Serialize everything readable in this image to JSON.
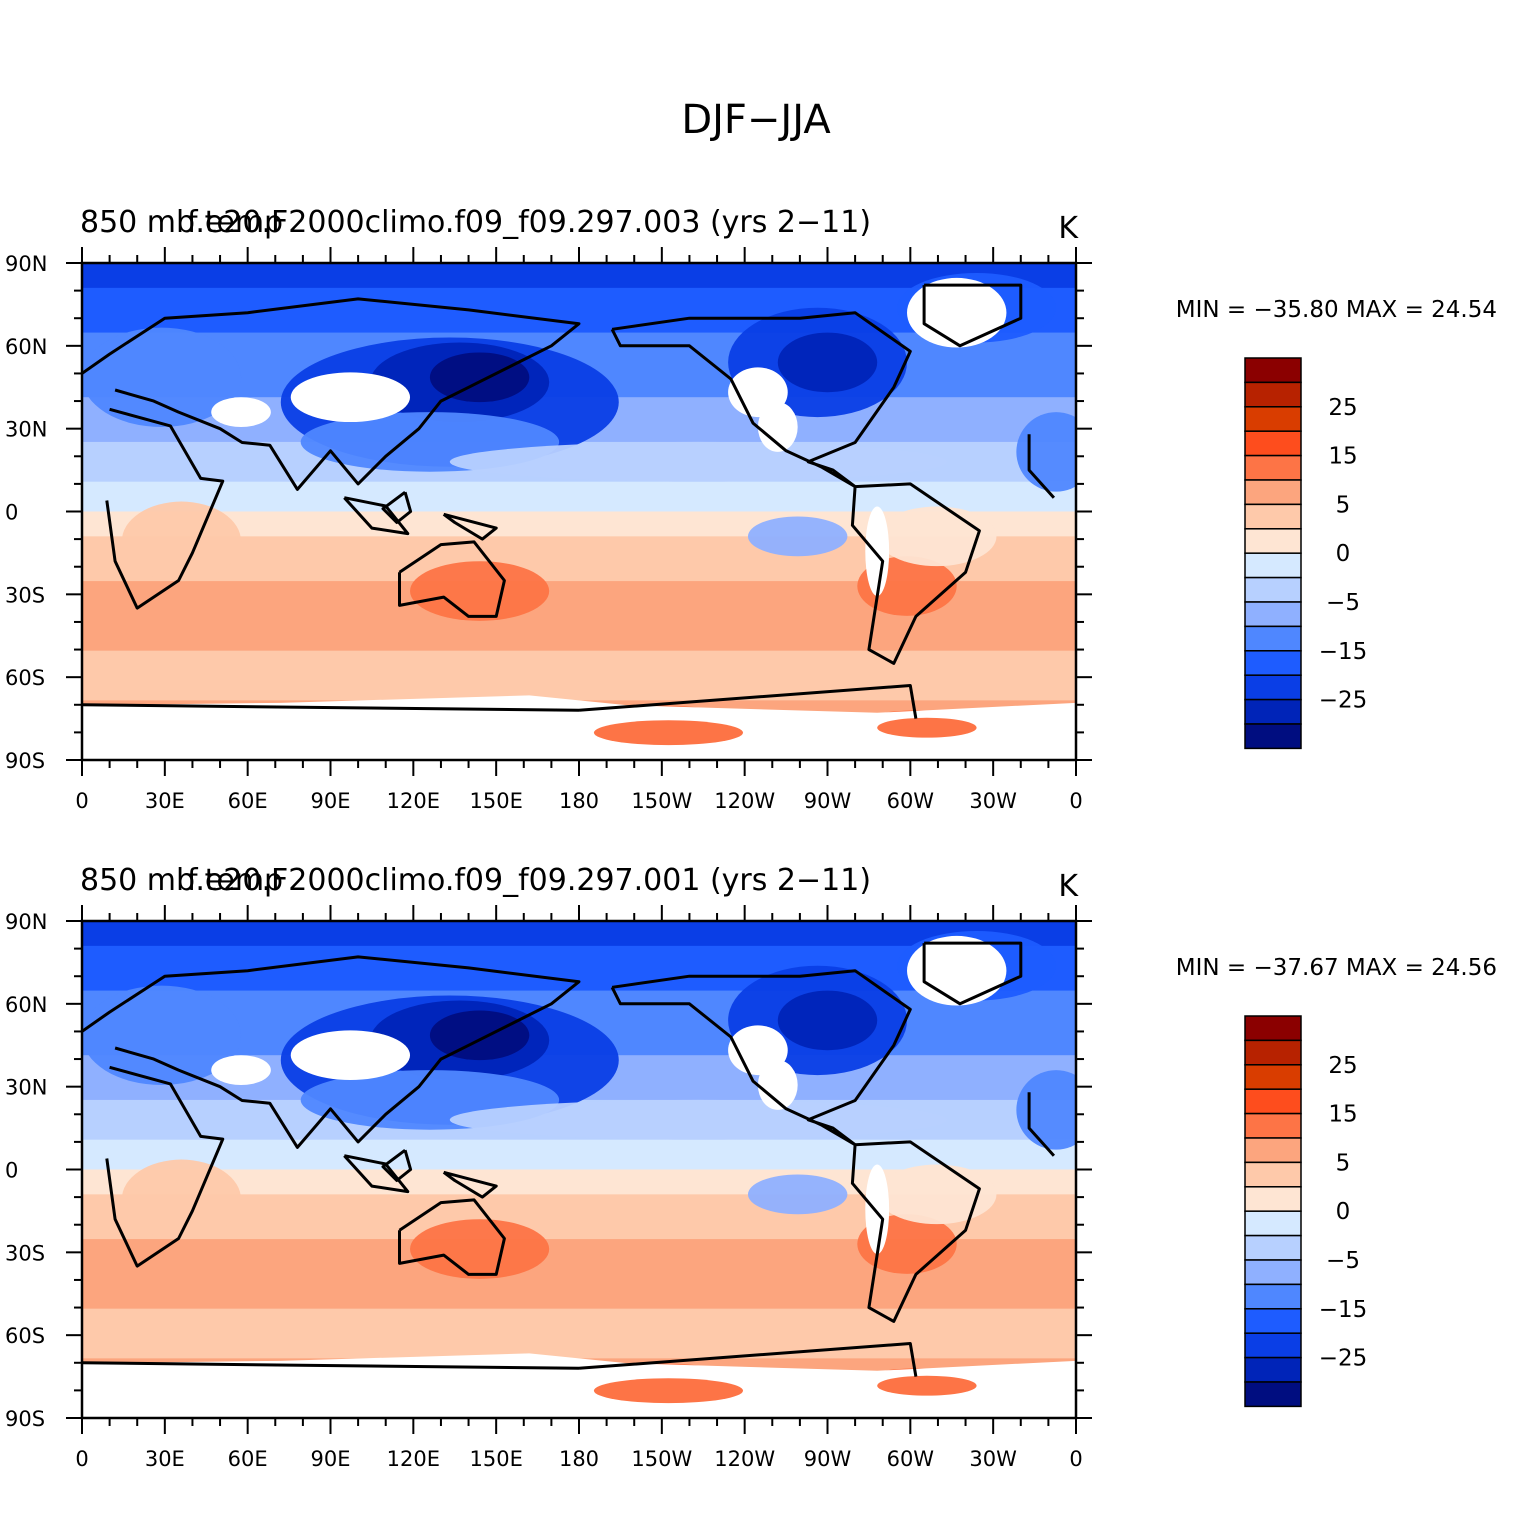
{
  "figure": {
    "title": "DJF−JJA"
  },
  "colorbar": {
    "colors": [
      "#8b0000",
      "#b72200",
      "#d93d00",
      "#fe4d1d",
      "#fd7446",
      "#fca57e",
      "#fec9aa",
      "#fee5d3",
      "#d5e9ff",
      "#b7d0ff",
      "#8fb0ff",
      "#4f87ff",
      "#1e5cff",
      "#0a3ee6",
      "#0024b8",
      "#000d80"
    ],
    "labels": [
      "25",
      "15",
      "5",
      "0",
      "−5",
      "−15",
      "−25"
    ],
    "label_after_bin": [
      1,
      3,
      5,
      7,
      9,
      11,
      13
    ]
  },
  "chart_data": [
    {
      "type": "map",
      "left_title": "850  mb temp",
      "center_title": "f.e20.F2000climo.f09_f09.297.003 (yrs 2−11)",
      "units": "K",
      "stats": "MIN = −35.80 MAX =   24.54",
      "min": -35.8,
      "max": 24.54,
      "contour_levels": [
        -35,
        -30,
        -25,
        -20,
        -15,
        -10,
        -5,
        -2,
        0,
        2,
        5,
        10,
        15,
        20,
        25,
        30
      ],
      "lat_range": [
        -90,
        90
      ],
      "lon_range": [
        0,
        360
      ],
      "y_tick_labels": [
        "90N",
        "60N",
        "30N",
        "0",
        "30S",
        "60S",
        "90S"
      ],
      "x_tick_labels": [
        "0",
        "30E",
        "60E",
        "90E",
        "120E",
        "150E",
        "180",
        "150W",
        "120W",
        "90W",
        "60W",
        "30W",
        "0"
      ]
    },
    {
      "type": "map",
      "left_title": "850  mb temp",
      "center_title": "f.e20.F2000climo.f09_f09.297.001 (yrs 2−11)",
      "units": "K",
      "stats": "MIN = −37.67 MAX =   24.56",
      "min": -37.67,
      "max": 24.56,
      "contour_levels": [
        -35,
        -30,
        -25,
        -20,
        -15,
        -10,
        -5,
        -2,
        0,
        2,
        5,
        10,
        15,
        20,
        25,
        30
      ],
      "lat_range": [
        -90,
        90
      ],
      "lon_range": [
        0,
        360
      ],
      "y_tick_labels": [
        "90N",
        "60N",
        "30N",
        "0",
        "30S",
        "60S",
        "90S"
      ],
      "x_tick_labels": [
        "0",
        "30E",
        "60E",
        "90E",
        "120E",
        "150E",
        "180",
        "150W",
        "120W",
        "90W",
        "60W",
        "30W",
        "0"
      ]
    }
  ]
}
